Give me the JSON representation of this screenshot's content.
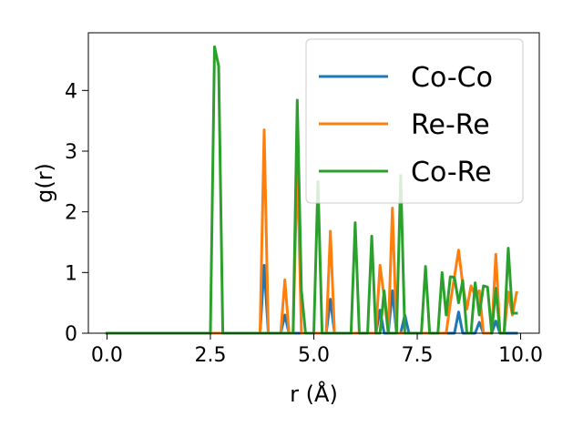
{
  "chart_data": {
    "type": "line",
    "xlabel": "r (Å)",
    "ylabel": "g(r)",
    "xlim": [
      -0.45,
      10.45
    ],
    "ylim": [
      0,
      4.95
    ],
    "xticks": [
      0.0,
      2.5,
      5.0,
      7.5,
      10.0
    ],
    "xtick_labels": [
      "0.0",
      "2.5",
      "5.0",
      "7.5",
      "10.0"
    ],
    "yticks": [
      0,
      1,
      2,
      3,
      4
    ],
    "ytick_labels": [
      "0",
      "1",
      "2",
      "3",
      "4"
    ],
    "grid": false,
    "legend_position": "top-right",
    "series": [
      {
        "name": "Co-Co",
        "color": "#1f77b4",
        "points": [
          [
            0,
            0
          ],
          [
            3.7,
            0
          ],
          [
            3.8,
            1.12
          ],
          [
            3.9,
            0
          ],
          [
            4.2,
            0
          ],
          [
            4.3,
            0.3
          ],
          [
            4.4,
            0
          ],
          [
            5.3,
            0
          ],
          [
            5.4,
            0.56
          ],
          [
            5.5,
            0
          ],
          [
            6.5,
            0
          ],
          [
            6.6,
            0.38
          ],
          [
            6.7,
            0
          ],
          [
            6.8,
            0
          ],
          [
            6.9,
            0.7
          ],
          [
            7.0,
            0
          ],
          [
            7.1,
            0
          ],
          [
            7.2,
            0.3
          ],
          [
            7.3,
            0
          ],
          [
            8.4,
            0
          ],
          [
            8.5,
            0.35
          ],
          [
            8.6,
            0
          ],
          [
            8.9,
            0
          ],
          [
            9.0,
            0.18
          ],
          [
            9.1,
            0
          ],
          [
            9.3,
            0
          ],
          [
            9.4,
            0.2
          ],
          [
            9.5,
            0
          ],
          [
            9.9,
            0
          ]
        ]
      },
      {
        "name": "Re-Re",
        "color": "#ff7f0e",
        "points": [
          [
            0,
            0
          ],
          [
            3.7,
            0
          ],
          [
            3.8,
            3.35
          ],
          [
            3.9,
            0
          ],
          [
            4.2,
            0
          ],
          [
            4.3,
            0.88
          ],
          [
            4.4,
            0
          ],
          [
            4.5,
            0
          ],
          [
            4.6,
            2.85
          ],
          [
            4.7,
            0
          ],
          [
            5.3,
            0
          ],
          [
            5.4,
            1.68
          ],
          [
            5.5,
            0
          ],
          [
            6.5,
            0
          ],
          [
            6.6,
            1.12
          ],
          [
            6.7,
            0.6
          ],
          [
            6.8,
            0
          ],
          [
            6.9,
            2.06
          ],
          [
            7.0,
            0
          ],
          [
            8.2,
            0
          ],
          [
            8.3,
            0.5
          ],
          [
            8.5,
            1.37
          ],
          [
            8.6,
            0.8
          ],
          [
            8.7,
            0.4
          ],
          [
            8.8,
            0.78
          ],
          [
            8.9,
            0.62
          ],
          [
            9.0,
            0.7
          ],
          [
            9.1,
            0
          ],
          [
            9.3,
            0
          ],
          [
            9.4,
            1.3
          ],
          [
            9.5,
            0
          ],
          [
            9.6,
            0
          ],
          [
            9.7,
            0.68
          ],
          [
            9.8,
            0.3
          ],
          [
            9.9,
            0.67
          ]
        ]
      },
      {
        "name": "Co-Re",
        "color": "#2ca02c",
        "points": [
          [
            0,
            0
          ],
          [
            2.5,
            0
          ],
          [
            2.6,
            4.72
          ],
          [
            2.7,
            4.4
          ],
          [
            2.8,
            0
          ],
          [
            4.5,
            0
          ],
          [
            4.6,
            3.84
          ],
          [
            4.7,
            0.7
          ],
          [
            4.8,
            0
          ],
          [
            5.0,
            0
          ],
          [
            5.1,
            2.5
          ],
          [
            5.2,
            0
          ],
          [
            5.9,
            0
          ],
          [
            6.0,
            1.82
          ],
          [
            6.1,
            0
          ],
          [
            6.3,
            0
          ],
          [
            6.4,
            1.6
          ],
          [
            6.5,
            0
          ],
          [
            6.6,
            0
          ],
          [
            6.7,
            0.7
          ],
          [
            6.8,
            0
          ],
          [
            7.0,
            0
          ],
          [
            7.1,
            2.6
          ],
          [
            7.2,
            0
          ],
          [
            7.6,
            0
          ],
          [
            7.7,
            1.1
          ],
          [
            7.8,
            0
          ],
          [
            8.0,
            0
          ],
          [
            8.1,
            1.0
          ],
          [
            8.2,
            0.3
          ],
          [
            8.3,
            0.93
          ],
          [
            8.4,
            0.92
          ],
          [
            8.5,
            0.5
          ],
          [
            8.6,
            0.87
          ],
          [
            8.7,
            0
          ],
          [
            8.8,
            0
          ],
          [
            8.9,
            0.83
          ],
          [
            9.0,
            0.3
          ],
          [
            9.1,
            0.78
          ],
          [
            9.2,
            0.76
          ],
          [
            9.3,
            0
          ],
          [
            9.4,
            0.74
          ],
          [
            9.5,
            0
          ],
          [
            9.6,
            0
          ],
          [
            9.7,
            1.4
          ],
          [
            9.8,
            0.33
          ],
          [
            9.9,
            0.33
          ]
        ]
      }
    ]
  }
}
